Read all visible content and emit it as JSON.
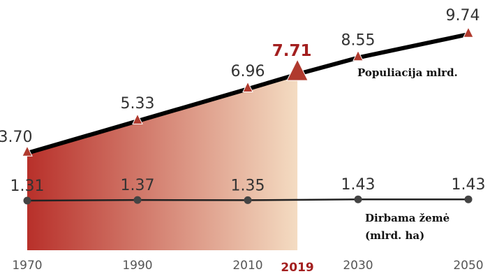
{
  "chart_data": {
    "type": "line",
    "x": [
      1970,
      1990,
      2010,
      2019,
      2030,
      2050
    ],
    "x_tick_labels": [
      "1970",
      "1990",
      "2010",
      "2019",
      "2030",
      "2050"
    ],
    "highlight_x": 2019,
    "series": [
      {
        "name": "Populiacija mlrd.",
        "x": [
          1970,
          1990,
          2010,
          2019,
          2030,
          2050
        ],
        "values": [
          3.7,
          5.33,
          6.96,
          7.71,
          8.55,
          9.74
        ],
        "labels": [
          "3.70",
          "5.33",
          "6.96",
          "7.71",
          "8.55",
          "9.74"
        ],
        "marker": "triangle",
        "line_color": "#000000",
        "marker_color": "#b03a2e"
      },
      {
        "name_lines": [
          "Dirbama žemė",
          "(mlrd. ha)"
        ],
        "x": [
          1970,
          1990,
          2010,
          2030,
          2050
        ],
        "values": [
          1.31,
          1.37,
          1.35,
          1.43,
          1.43
        ],
        "labels": [
          "1.31",
          "1.37",
          "1.35",
          "1.43",
          "1.43"
        ],
        "marker": "circle",
        "line_color": "#222222",
        "marker_color": "#444444"
      }
    ],
    "fill": {
      "from": 1970,
      "to": 2019,
      "color_start": "#b8302a",
      "color_end": "#f4dcc2"
    },
    "colors": {
      "highlight": "#a31f1f"
    },
    "grid": false,
    "legend": "inline"
  }
}
